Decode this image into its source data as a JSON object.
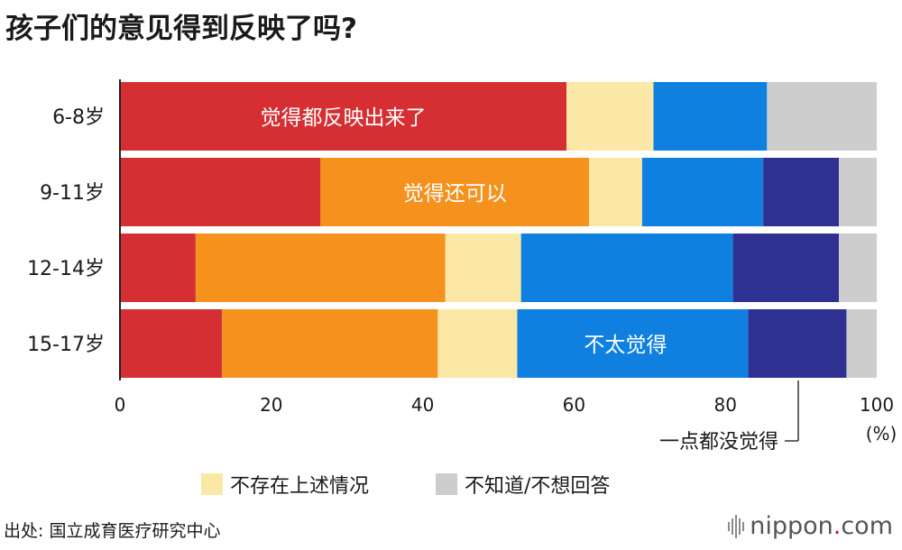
{
  "title": "孩子们的意见得到反映了吗?",
  "source": "出处: 国立成育医疗研究中心",
  "brand": {
    "prefix": "nippon",
    "dot": ".",
    "suffix": "com"
  },
  "chart_data": {
    "type": "bar",
    "orientation": "horizontal",
    "stacked": true,
    "title": "孩子们的意见得到反映了吗?",
    "xlabel": "",
    "ylabel": "",
    "unit_label": "(%)",
    "xlim": [
      0,
      100
    ],
    "xticks": [
      "0",
      "20",
      "40",
      "60",
      "80",
      "100"
    ],
    "categories": [
      "6-8岁",
      "9-11岁",
      "12-14岁",
      "15-17岁"
    ],
    "series": [
      {
        "name": "觉得都反映出来了",
        "color": "#d62f33",
        "values": [
          59,
          26.5,
          10,
          13.5
        ]
      },
      {
        "name": "觉得还可以",
        "color": "#f5921e",
        "values": [
          0,
          35.5,
          33,
          28.5
        ]
      },
      {
        "name": "不存在上述情况",
        "color": "#fce8a6",
        "values": [
          11.5,
          7,
          10,
          10.5
        ]
      },
      {
        "name": "不太觉得",
        "color": "#0f80e0",
        "values": [
          15,
          16,
          28,
          30.5
        ]
      },
      {
        "name": "一点都没觉得",
        "color": "#2e3192",
        "values": [
          0,
          10,
          14,
          13
        ]
      },
      {
        "name": "不知道/不想回答",
        "color": "#cdcdcd",
        "values": [
          14.5,
          5,
          5,
          4
        ]
      }
    ],
    "inline_labels": [
      {
        "series": 0,
        "row": 0,
        "text": "觉得都反映出来了"
      },
      {
        "series": 1,
        "row": 1,
        "text": "觉得还可以"
      },
      {
        "series": 3,
        "row": 3,
        "text": "不太觉得"
      }
    ],
    "callout": {
      "series": 4,
      "text": "一点都没觉得"
    },
    "legend": [
      {
        "series": 2,
        "text": "不存在上述情况"
      },
      {
        "series": 5,
        "text": "不知道/不想回答"
      }
    ],
    "legend_position": "bottom",
    "grid": false
  }
}
